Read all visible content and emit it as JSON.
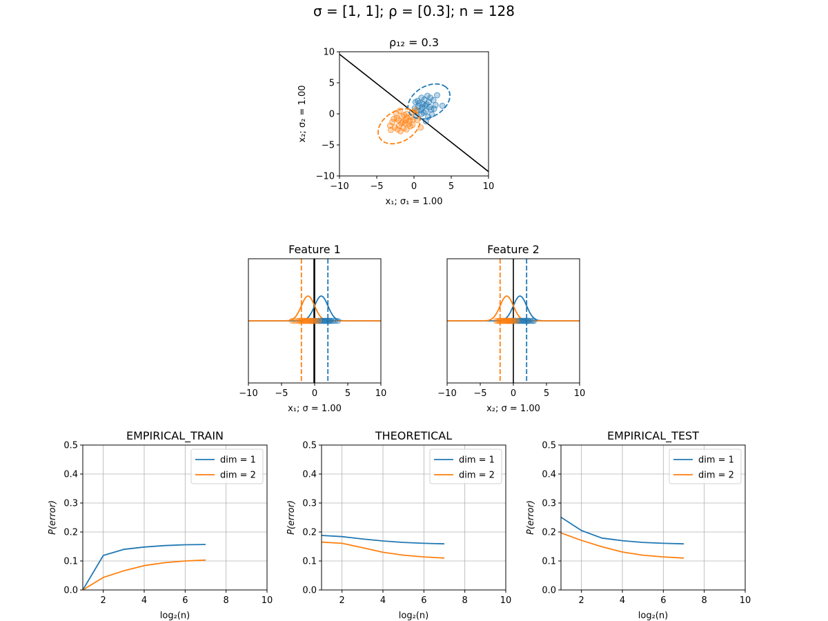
{
  "suptitle": "σ =  [1, 1]; ρ =  [0.3]; n =  128",
  "colors": {
    "dim1": "#1f77b4",
    "dim2": "#ff7f0e",
    "boundary": "#000000",
    "grid": "#b0b0b0"
  },
  "chart_data": [
    {
      "type": "scatter",
      "title": "ρ₁₂ = 0.3",
      "xlabel": "x₁;  σ₁ = 1.00",
      "ylabel": "x₂;  σ₂ = 1.00",
      "xlim": [
        -10,
        10
      ],
      "ylim": [
        -10,
        10
      ],
      "xticks": [
        -10,
        -5,
        0,
        5,
        10
      ],
      "yticks": [
        -10,
        -5,
        0,
        5,
        10
      ],
      "grid": false,
      "boundary_line": [
        [
          -10,
          9.6
        ],
        [
          10,
          -9.3
        ]
      ],
      "ellipses": [
        {
          "class": "dim = 1",
          "center": [
            2.0,
            2.0
          ],
          "rx": 3.25,
          "ry": 2.3,
          "angle_deg": 45
        },
        {
          "class": "dim = 2",
          "center": [
            -2.0,
            -2.0
          ],
          "rx": 3.25,
          "ry": 2.3,
          "angle_deg": 45
        }
      ],
      "series": [
        {
          "class": "dim = 1",
          "points": [
            [
              1.2,
              1.6
            ],
            [
              0.5,
              2.1
            ],
            [
              2.1,
              1.1
            ],
            [
              1.6,
              0.4
            ],
            [
              0.1,
              0.9
            ],
            [
              2.6,
              2.2
            ],
            [
              3.1,
              3.0
            ],
            [
              1.0,
              2.6
            ],
            [
              1.8,
              2.9
            ],
            [
              0.6,
              1.2
            ],
            [
              2.9,
              1.4
            ],
            [
              1.3,
              0.2
            ],
            [
              0.2,
              1.9
            ],
            [
              2.3,
              0.7
            ],
            [
              1.5,
              1.3
            ],
            [
              0.9,
              0.6
            ],
            [
              2.0,
              1.9
            ],
            [
              1.1,
              1.0
            ],
            [
              3.8,
              1.3
            ],
            [
              0.7,
              1.7
            ],
            [
              1.9,
              -0.5
            ],
            [
              2.4,
              -0.1
            ],
            [
              0.3,
              -0.2
            ],
            [
              1.4,
              2.3
            ],
            [
              2.7,
              0.8
            ],
            [
              1.7,
              1.5
            ],
            [
              0.4,
              0.5
            ],
            [
              2.2,
              2.6
            ],
            [
              1.0,
              0.0
            ],
            [
              1.6,
              -1.2
            ]
          ]
        },
        {
          "class": "dim = 2",
          "points": [
            [
              -1.2,
              -1.5
            ],
            [
              -0.5,
              -2.0
            ],
            [
              -2.1,
              -1.0
            ],
            [
              -1.6,
              -0.4
            ],
            [
              -0.1,
              -0.9
            ],
            [
              -2.6,
              -2.2
            ],
            [
              -3.1,
              -2.6
            ],
            [
              -1.0,
              -2.5
            ],
            [
              -1.8,
              -2.8
            ],
            [
              -0.6,
              -1.1
            ],
            [
              -2.9,
              -1.3
            ],
            [
              -1.3,
              -0.2
            ],
            [
              -0.2,
              -1.8
            ],
            [
              -2.3,
              -0.7
            ],
            [
              -1.5,
              -1.3
            ],
            [
              -0.9,
              -0.6
            ],
            [
              -2.0,
              -1.9
            ],
            [
              -1.1,
              -1.0
            ],
            [
              -0.7,
              -1.6
            ],
            [
              -1.9,
              0.5
            ],
            [
              -2.4,
              0.1
            ],
            [
              -0.3,
              0.2
            ],
            [
              -1.4,
              -2.3
            ],
            [
              -2.7,
              -0.8
            ],
            [
              -1.7,
              -1.5
            ],
            [
              -0.4,
              -0.5
            ],
            [
              -2.2,
              -2.5
            ],
            [
              -1.0,
              0.0
            ],
            [
              0.4,
              -1.0
            ],
            [
              0.9,
              -2.2
            ],
            [
              -3.2,
              -1.9
            ],
            [
              0.2,
              0.6
            ]
          ]
        }
      ]
    },
    {
      "type": "line",
      "title": "Feature 1",
      "xlabel": "x₁; σ = 1.00",
      "xlim": [
        -10,
        10
      ],
      "xticks": [
        -10,
        -5,
        0,
        5,
        10
      ],
      "grid": false,
      "densities": [
        {
          "class": "dim = 1",
          "mean": 1.0,
          "std": 1.0
        },
        {
          "class": "dim = 2",
          "mean": -1.0,
          "std": 1.0
        }
      ],
      "mean_markers": [
        {
          "class": "dim = 1",
          "x": 2.0
        },
        {
          "class": "dim = 2",
          "x": -2.0
        }
      ],
      "boundary_x": [
        0.0,
        -0.1
      ],
      "rug": [
        {
          "class": "dim = 1",
          "x": [
            -0.5,
            0.0,
            0.3,
            0.6,
            0.9,
            1.1,
            1.3,
            1.5,
            1.7,
            1.9,
            2.1,
            2.3,
            2.5,
            2.8,
            3.1,
            3.5,
            0.8,
            1.6,
            2.2,
            -0.2
          ]
        },
        {
          "class": "dim = 2",
          "x": [
            -3.4,
            -3.0,
            -2.6,
            -2.3,
            -2.0,
            -1.8,
            -1.6,
            -1.4,
            -1.2,
            -1.0,
            -0.8,
            -0.6,
            -0.4,
            -0.1,
            0.2,
            0.6,
            -1.5,
            -0.9,
            -2.1,
            -0.3
          ]
        }
      ]
    },
    {
      "type": "line",
      "title": "Feature 2",
      "xlabel": "x₂; σ = 1.00",
      "xlim": [
        -10,
        10
      ],
      "xticks": [
        -10,
        -5,
        0,
        5,
        10
      ],
      "grid": false,
      "densities": [
        {
          "class": "dim = 1",
          "mean": 1.0,
          "std": 1.0
        },
        {
          "class": "dim = 2",
          "mean": -1.0,
          "std": 1.0
        }
      ],
      "mean_markers": [
        {
          "class": "dim = 1",
          "x": 2.0
        },
        {
          "class": "dim = 2",
          "x": -2.0
        }
      ],
      "boundary_x": [
        0.0
      ],
      "rug": [
        {
          "class": "dim = 1",
          "x": [
            -0.6,
            -0.1,
            0.3,
            0.6,
            0.9,
            1.1,
            1.3,
            1.5,
            1.7,
            1.9,
            2.1,
            2.3,
            2.6,
            2.9,
            3.1,
            0.7,
            1.6,
            2.2,
            -0.3,
            0.1
          ]
        },
        {
          "class": "dim = 2",
          "x": [
            -2.6,
            -2.3,
            -2.0,
            -1.8,
            -1.6,
            -1.4,
            -1.2,
            -1.0,
            -0.8,
            -0.6,
            -0.4,
            -0.1,
            0.2,
            0.5,
            -1.5,
            -0.9,
            -2.1,
            -0.3,
            -1.1,
            -0.7
          ]
        }
      ]
    },
    {
      "type": "line",
      "title": "EMPIRICAL_TRAIN",
      "xlabel": "log₂(n)",
      "ylabel": "P(error)",
      "xlim": [
        1,
        10
      ],
      "ylim": [
        0,
        0.5
      ],
      "xticks": [
        2,
        4,
        6,
        8,
        10
      ],
      "yticks": [
        0.0,
        0.1,
        0.2,
        0.3,
        0.4,
        0.5
      ],
      "ytick_labels": [
        "0.0",
        "0.1",
        "0.2",
        "0.3",
        "0.4",
        "0.5"
      ],
      "grid": true,
      "legend": "top-right",
      "x": [
        1,
        2,
        3,
        4,
        5,
        6,
        7
      ],
      "series": [
        {
          "name": "dim = 1",
          "values": [
            0.0,
            0.119,
            0.14,
            0.148,
            0.153,
            0.156,
            0.157
          ]
        },
        {
          "name": "dim = 2",
          "values": [
            0.0,
            0.043,
            0.066,
            0.084,
            0.094,
            0.1,
            0.103
          ]
        }
      ]
    },
    {
      "type": "line",
      "title": "THEORETICAL",
      "xlabel": "log₂(n)",
      "ylabel": "P(error)",
      "xlim": [
        1,
        10
      ],
      "ylim": [
        0,
        0.5
      ],
      "xticks": [
        2,
        4,
        6,
        8,
        10
      ],
      "yticks": [
        0.0,
        0.1,
        0.2,
        0.3,
        0.4,
        0.5
      ],
      "ytick_labels": [
        "0.0",
        "0.1",
        "0.2",
        "0.3",
        "0.4",
        "0.5"
      ],
      "grid": true,
      "legend": "top-right",
      "x": [
        1,
        2,
        3,
        4,
        5,
        6,
        7
      ],
      "series": [
        {
          "name": "dim = 1",
          "values": [
            0.188,
            0.184,
            0.176,
            0.169,
            0.164,
            0.161,
            0.159
          ]
        },
        {
          "name": "dim = 2",
          "values": [
            0.165,
            0.161,
            0.146,
            0.13,
            0.12,
            0.114,
            0.11
          ]
        }
      ]
    },
    {
      "type": "line",
      "title": "EMPIRICAL_TEST",
      "xlabel": "log₂(n)",
      "ylabel": "P(error)",
      "xlim": [
        1,
        10
      ],
      "ylim": [
        0,
        0.5
      ],
      "xticks": [
        2,
        4,
        6,
        8,
        10
      ],
      "yticks": [
        0.0,
        0.1,
        0.2,
        0.3,
        0.4,
        0.5
      ],
      "ytick_labels": [
        "0.0",
        "0.1",
        "0.2",
        "0.3",
        "0.4",
        "0.5"
      ],
      "grid": true,
      "legend": "top-right",
      "x": [
        1,
        2,
        3,
        4,
        5,
        6,
        7
      ],
      "series": [
        {
          "name": "dim = 1",
          "values": [
            0.251,
            0.205,
            0.179,
            0.17,
            0.164,
            0.161,
            0.159
          ]
        },
        {
          "name": "dim = 2",
          "values": [
            0.197,
            0.171,
            0.149,
            0.131,
            0.12,
            0.114,
            0.11
          ]
        }
      ]
    }
  ]
}
